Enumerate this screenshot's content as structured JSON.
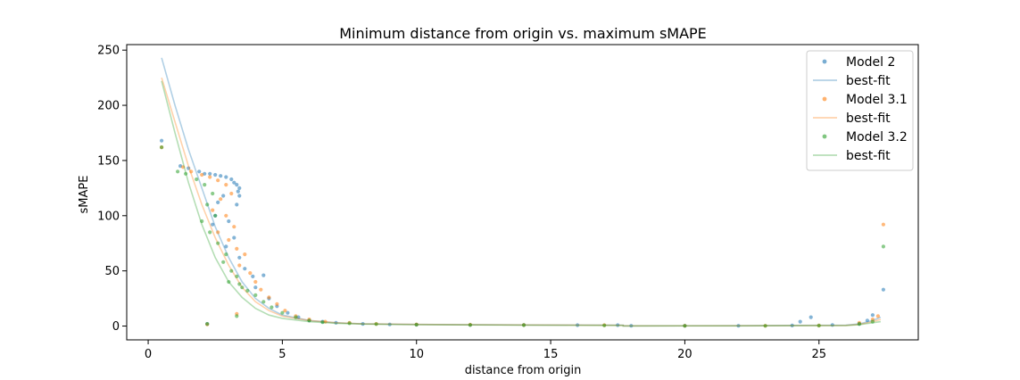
{
  "chart_data": {
    "type": "scatter",
    "title": "Minimum distance from origin vs. maximum sMAPE",
    "xlabel": "distance from origin",
    "ylabel": "sMAPE",
    "xlim": [
      -0.8,
      28.7
    ],
    "ylim": [
      -12.5,
      255
    ],
    "xticks": [
      0,
      5,
      10,
      15,
      20,
      25
    ],
    "yticks": [
      0,
      50,
      100,
      150,
      200,
      250
    ],
    "grid": false,
    "legend_placement": "top-right",
    "series": [
      {
        "name": "Model 2",
        "color": "#1f77b4",
        "markers": [
          [
            0.5,
            168
          ],
          [
            1.2,
            145
          ],
          [
            1.5,
            143
          ],
          [
            1.9,
            140
          ],
          [
            2.1,
            138
          ],
          [
            2.3,
            138
          ],
          [
            2.5,
            137
          ],
          [
            2.7,
            136
          ],
          [
            2.9,
            135
          ],
          [
            3.1,
            133
          ],
          [
            3.2,
            130
          ],
          [
            3.3,
            128
          ],
          [
            3.4,
            125
          ],
          [
            3.35,
            122
          ],
          [
            3.4,
            118
          ],
          [
            3.3,
            110
          ],
          [
            2.8,
            118
          ],
          [
            2.6,
            112
          ],
          [
            2.5,
            100
          ],
          [
            2.4,
            92
          ],
          [
            3.0,
            95
          ],
          [
            3.2,
            80
          ],
          [
            2.9,
            72
          ],
          [
            3.4,
            62
          ],
          [
            3.6,
            52
          ],
          [
            3.9,
            45
          ],
          [
            4.3,
            46
          ],
          [
            4.0,
            35
          ],
          [
            4.5,
            25
          ],
          [
            4.8,
            18
          ],
          [
            5.2,
            12
          ],
          [
            5.6,
            8
          ],
          [
            6.0,
            5
          ],
          [
            6.5,
            4
          ],
          [
            7.0,
            3
          ],
          [
            8.0,
            2
          ],
          [
            9.0,
            1.5
          ],
          [
            10,
            1.2
          ],
          [
            12,
            1
          ],
          [
            14,
            1
          ],
          [
            16,
            0.8
          ],
          [
            17.5,
            0.8
          ],
          [
            18,
            0.3
          ],
          [
            20,
            0.3
          ],
          [
            22,
            0.3
          ],
          [
            24,
            0.5
          ],
          [
            24.3,
            4
          ],
          [
            24.7,
            8
          ],
          [
            25.5,
            1
          ],
          [
            26.5,
            2
          ],
          [
            26.8,
            5
          ],
          [
            27.0,
            10
          ],
          [
            27.4,
            33
          ],
          [
            2.2,
            2
          ]
        ],
        "fit": [
          [
            0.5,
            243
          ],
          [
            1.0,
            200
          ],
          [
            1.5,
            160
          ],
          [
            2.0,
            125
          ],
          [
            2.5,
            90
          ],
          [
            3.0,
            62
          ],
          [
            3.5,
            40
          ],
          [
            4.0,
            25
          ],
          [
            4.5,
            16
          ],
          [
            5.0,
            10
          ],
          [
            6.0,
            5
          ],
          [
            7.0,
            3
          ],
          [
            8.0,
            2
          ],
          [
            10,
            1.5
          ],
          [
            14,
            1
          ],
          [
            17.7,
            0.8
          ],
          [
            17.7,
            0.2
          ],
          [
            22,
            0.3
          ],
          [
            26.0,
            0.8
          ],
          [
            26.5,
            2
          ],
          [
            27.0,
            5
          ],
          [
            27.3,
            8
          ]
        ]
      },
      {
        "name": "Model 3.1",
        "color": "#ff7f0e",
        "markers": [
          [
            0.5,
            162
          ],
          [
            1.3,
            144
          ],
          [
            1.6,
            140
          ],
          [
            2.0,
            137
          ],
          [
            2.3,
            135
          ],
          [
            2.6,
            132
          ],
          [
            2.9,
            128
          ],
          [
            3.1,
            120
          ],
          [
            2.7,
            115
          ],
          [
            2.4,
            105
          ],
          [
            2.9,
            100
          ],
          [
            3.2,
            90
          ],
          [
            2.6,
            85
          ],
          [
            3.0,
            78
          ],
          [
            3.3,
            70
          ],
          [
            3.6,
            65
          ],
          [
            3.4,
            55
          ],
          [
            3.8,
            48
          ],
          [
            4.0,
            40
          ],
          [
            4.2,
            33
          ],
          [
            4.5,
            26
          ],
          [
            4.8,
            20
          ],
          [
            5.1,
            14
          ],
          [
            5.5,
            9
          ],
          [
            6.0,
            6
          ],
          [
            6.6,
            4
          ],
          [
            7.5,
            3
          ],
          [
            8.5,
            2
          ],
          [
            10,
            1.5
          ],
          [
            12,
            1.2
          ],
          [
            14,
            1
          ],
          [
            17,
            0.8
          ],
          [
            20,
            0.3
          ],
          [
            23,
            0.3
          ],
          [
            25,
            0.5
          ],
          [
            26.5,
            3
          ],
          [
            27.0,
            6
          ],
          [
            27.2,
            9
          ],
          [
            27.4,
            92
          ],
          [
            2.2,
            1.5
          ],
          [
            3.3,
            11
          ]
        ],
        "fit": [
          [
            0.5,
            225
          ],
          [
            1.0,
            185
          ],
          [
            1.5,
            145
          ],
          [
            2.0,
            110
          ],
          [
            2.5,
            80
          ],
          [
            3.0,
            55
          ],
          [
            3.5,
            35
          ],
          [
            4.0,
            22
          ],
          [
            4.5,
            14
          ],
          [
            5.0,
            9
          ],
          [
            6.0,
            5
          ],
          [
            7.0,
            3
          ],
          [
            8.0,
            2
          ],
          [
            10,
            1.5
          ],
          [
            14,
            1
          ],
          [
            17.7,
            0.7
          ],
          [
            17.7,
            0.2
          ],
          [
            22,
            0.3
          ],
          [
            26.0,
            0.6
          ],
          [
            26.5,
            1.5
          ],
          [
            27.0,
            4
          ],
          [
            27.3,
            6
          ]
        ]
      },
      {
        "name": "Model 3.2",
        "color": "#2ca02c",
        "markers": [
          [
            0.5,
            162
          ],
          [
            1.1,
            140
          ],
          [
            1.4,
            138
          ],
          [
            1.8,
            133
          ],
          [
            2.1,
            128
          ],
          [
            2.4,
            120
          ],
          [
            2.2,
            110
          ],
          [
            2.5,
            100
          ],
          [
            2.0,
            95
          ],
          [
            2.3,
            85
          ],
          [
            2.6,
            75
          ],
          [
            2.9,
            65
          ],
          [
            2.8,
            58
          ],
          [
            3.1,
            50
          ],
          [
            3.3,
            45
          ],
          [
            3.0,
            40
          ],
          [
            3.4,
            38
          ],
          [
            3.5,
            35
          ],
          [
            3.7,
            32
          ],
          [
            4.0,
            28
          ],
          [
            4.3,
            22
          ],
          [
            4.6,
            17
          ],
          [
            5.0,
            12
          ],
          [
            5.5,
            8
          ],
          [
            6.0,
            5
          ],
          [
            6.5,
            3.5
          ],
          [
            7.5,
            2.5
          ],
          [
            8.5,
            1.8
          ],
          [
            10,
            1.2
          ],
          [
            12,
            1
          ],
          [
            14,
            0.8
          ],
          [
            17,
            0.6
          ],
          [
            20,
            0.2
          ],
          [
            23,
            0.2
          ],
          [
            25,
            0.4
          ],
          [
            26.5,
            2
          ],
          [
            27.0,
            4
          ],
          [
            27.4,
            72
          ],
          [
            2.2,
            2
          ],
          [
            3.3,
            9
          ]
        ],
        "fit": [
          [
            0.5,
            222
          ],
          [
            1.0,
            175
          ],
          [
            1.5,
            130
          ],
          [
            2.0,
            92
          ],
          [
            2.5,
            62
          ],
          [
            3.0,
            40
          ],
          [
            3.5,
            26
          ],
          [
            4.0,
            16
          ],
          [
            4.5,
            10
          ],
          [
            5.0,
            7
          ],
          [
            6.0,
            4
          ],
          [
            7.0,
            2.5
          ],
          [
            8.0,
            1.8
          ],
          [
            10,
            1.2
          ],
          [
            14,
            0.8
          ],
          [
            17.7,
            0.6
          ],
          [
            17.7,
            0.1
          ],
          [
            22,
            0.2
          ],
          [
            26.0,
            0.5
          ],
          [
            26.5,
            1.2
          ],
          [
            27.0,
            3
          ],
          [
            27.3,
            4
          ]
        ]
      }
    ],
    "legend": [
      {
        "label": "Model 2",
        "kind": "marker",
        "color": "#1f77b4"
      },
      {
        "label": "best-fit",
        "kind": "line",
        "color": "#1f77b4"
      },
      {
        "label": "Model 3.1",
        "kind": "marker",
        "color": "#ff7f0e"
      },
      {
        "label": "best-fit",
        "kind": "line",
        "color": "#ff7f0e"
      },
      {
        "label": "Model 3.2",
        "kind": "marker",
        "color": "#2ca02c"
      },
      {
        "label": "best-fit",
        "kind": "line",
        "color": "#2ca02c"
      }
    ]
  }
}
